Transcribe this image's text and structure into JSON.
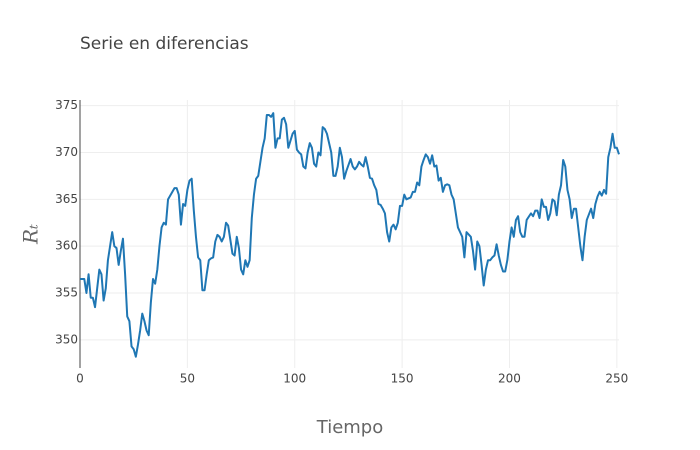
{
  "chart_data": {
    "type": "line",
    "title": "Serie en diferencias",
    "xlabel": "Tiempo",
    "ylabel": "Rₜ",
    "xlim": [
      0,
      251
    ],
    "ylim": [
      347,
      375.6
    ],
    "xticks": [
      0,
      50,
      100,
      150,
      200,
      250
    ],
    "yticks": [
      350,
      355,
      360,
      365,
      370,
      375
    ],
    "grid": true,
    "x": [
      0,
      1,
      2,
      3,
      4,
      5,
      6,
      7,
      8,
      9,
      10,
      11,
      12,
      13,
      15,
      16,
      17,
      18,
      19,
      20,
      21,
      22,
      23,
      24,
      25,
      26,
      27,
      28,
      29,
      30,
      31,
      32,
      33,
      34,
      35,
      36,
      37,
      38,
      39,
      40,
      41,
      43,
      44,
      45,
      46,
      47,
      48,
      49,
      50,
      51,
      52,
      53,
      54,
      55,
      56,
      57,
      58,
      59,
      60,
      61,
      62,
      63,
      64,
      65,
      66,
      67,
      68,
      69,
      71,
      72,
      73,
      74,
      75,
      76,
      77,
      78,
      79,
      80,
      81,
      82,
      83,
      84,
      85,
      86,
      87,
      88,
      89,
      90,
      91,
      92,
      93,
      94,
      95,
      96,
      97,
      99,
      100,
      101,
      102,
      103,
      104,
      105,
      106,
      107,
      108,
      109,
      110,
      111,
      112,
      113,
      114,
      115,
      116,
      117,
      118,
      119,
      120,
      121,
      122,
      123,
      124,
      126,
      127,
      128,
      129,
      130,
      131,
      132,
      133,
      134,
      135,
      136,
      137,
      138,
      139,
      140,
      141,
      142,
      143,
      144,
      145,
      146,
      147,
      148,
      149,
      150,
      151,
      152,
      154,
      155,
      156,
      157,
      158,
      159,
      160,
      161,
      162,
      163,
      164,
      165,
      166,
      167,
      168,
      169,
      170,
      171,
      172,
      173,
      174,
      175,
      176,
      177,
      178,
      179,
      180,
      182,
      183,
      184,
      185,
      186,
      187,
      188,
      189,
      190,
      191,
      192,
      193,
      194,
      195,
      196,
      197,
      198,
      199,
      200,
      201,
      202,
      203,
      204,
      205,
      206,
      207,
      208,
      210,
      211,
      212,
      213,
      214,
      215,
      216,
      217,
      218,
      219,
      220,
      221,
      222,
      223,
      224,
      225,
      226,
      227,
      228,
      229,
      230,
      231,
      232,
      233,
      234,
      235,
      236,
      238,
      239,
      240,
      241,
      242,
      243,
      244,
      245,
      246,
      247,
      248,
      249,
      250,
      251
    ],
    "series": [
      {
        "name": "Rt",
        "color": "#1f77b4",
        "values": [
          356.5,
          356.5,
          356.5,
          355,
          357,
          354.5,
          354.5,
          353.5,
          355.5,
          357.5,
          357,
          354.2,
          355.5,
          358.5,
          361.5,
          360,
          359.8,
          358,
          359.5,
          360.8,
          357,
          352.5,
          352,
          349.3,
          349,
          348.2,
          349.5,
          351,
          352.8,
          352,
          351,
          350.5,
          354,
          356.5,
          356,
          357.5,
          360,
          362,
          362.5,
          362.3,
          365,
          365.8,
          366.2,
          366.2,
          365.5,
          362.3,
          364.5,
          364.3,
          366,
          367,
          367.2,
          363.8,
          361,
          358.8,
          358.5,
          355.3,
          355.3,
          357,
          358.5,
          358.7,
          358.8,
          360.5,
          361.2,
          361,
          360.5,
          361,
          362.5,
          362.2,
          359.2,
          359,
          361,
          359.8,
          357.5,
          357,
          358.5,
          357.8,
          358.5,
          363,
          365.5,
          367.2,
          367.5,
          369,
          370.5,
          371.5,
          374,
          374,
          373.8,
          374.2,
          370.5,
          371.5,
          371.5,
          373.5,
          373.7,
          373,
          370.5,
          372,
          372.3,
          370.3,
          370,
          369.8,
          368.5,
          368.3,
          370,
          371,
          370.5,
          368.8,
          368.5,
          370,
          369.7,
          372.7,
          372.5,
          372,
          371,
          370,
          367.5,
          367.5,
          368.5,
          370.5,
          369.5,
          367.2,
          368,
          369.3,
          368.5,
          368.2,
          368.5,
          369,
          368.7,
          368.5,
          369.5,
          368.5,
          367.3,
          367.2,
          366.5,
          366,
          364.5,
          364.4,
          364,
          363.5,
          361.5,
          360.5,
          362,
          362.3,
          361.8,
          362.5,
          364.3,
          364.3,
          365.5,
          365,
          365.2,
          365.8,
          365.8,
          366.8,
          366.5,
          368.5,
          369.2,
          369.8,
          369.5,
          368.8,
          369.7,
          368.5,
          368.6,
          367,
          367.3,
          365.8,
          366.5,
          366.6,
          366.5,
          365.5,
          365,
          363.5,
          362,
          361.5,
          361,
          358.8,
          361.5,
          361,
          359.5,
          357.5,
          360.5,
          360,
          358,
          355.8,
          357.5,
          358.5,
          358.5,
          358.8,
          359,
          360.2,
          359,
          358,
          357.3,
          357.3,
          358.5,
          360.5,
          362,
          361,
          362.8,
          363.2,
          361.5,
          361,
          361,
          362.8,
          363.5,
          363.2,
          363.8,
          363.8,
          363,
          365,
          364.2,
          364.2,
          362.8,
          363.5,
          365,
          364.8,
          363.3,
          365.5,
          366.5,
          369.2,
          368.5,
          366,
          365,
          363,
          364,
          364,
          362,
          360,
          358.5,
          361,
          362.8,
          364,
          363,
          364.5,
          365.3,
          365.8,
          365.4,
          366,
          365.6,
          369.5,
          370.5,
          372,
          370.5,
          370.5,
          369.8
        ]
      }
    ]
  }
}
